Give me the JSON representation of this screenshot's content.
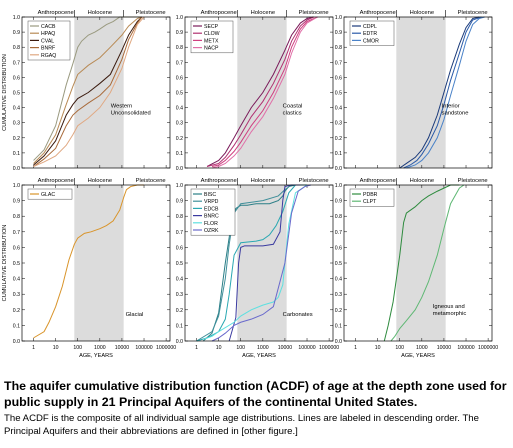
{
  "figure": {
    "period_labels": [
      "Anthropocene",
      "Holocene",
      "Pleistocene"
    ],
    "y_axis_label": "CUMULATIVE DISTRIBUTION",
    "x_axis_label": "AGE, YEARS",
    "y_tick_labels": [
      "0.0",
      "0.1",
      "0.2",
      "0.3",
      "0.4",
      "0.5",
      "0.6",
      "0.7",
      "0.8",
      "0.9",
      "1.0"
    ],
    "x_tick_labels": [
      "1",
      "10",
      "100",
      "1000",
      "10000",
      "100000",
      "1000000"
    ]
  },
  "caption": {
    "title": "The aquifer cumulative distribution function (ACDF) of age at the depth zone used for public supply in 21 Principal Aquifers of the continental United States.",
    "body": "The ACDF is the composite of all individual sample age distributions. Lines are labeled in descending order. The Principal Aquifers and their abbreviations are defined in [other figure.]"
  },
  "chart_data": [
    {
      "type": "line",
      "xscale": "log",
      "xlim": [
        0.3,
        1500000
      ],
      "ylim": [
        0,
        1
      ],
      "title": "",
      "xlabel": "",
      "ylabel": "CUMULATIVE DISTRIBUTION",
      "grid": false,
      "shaded_x_range": [
        70,
        12000
      ],
      "legend": "top-left",
      "annotation": "Western\nUnconsolidated",
      "series": [
        {
          "name": "CACB",
          "color": "#9a9a80",
          "x": [
            1,
            3,
            10,
            30,
            60,
            100,
            150,
            300,
            600,
            1000,
            2000,
            4000,
            8000,
            15000,
            30000,
            80000
          ],
          "y": [
            0.05,
            0.12,
            0.28,
            0.55,
            0.69,
            0.8,
            0.84,
            0.88,
            0.9,
            0.92,
            0.95,
            0.97,
            1,
            1,
            1,
            1
          ]
        },
        {
          "name": "HPAQ",
          "color": "#b88a55",
          "x": [
            1,
            3,
            10,
            30,
            60,
            100,
            300,
            1000,
            3000,
            10000,
            20000,
            50000,
            80000
          ],
          "y": [
            0.03,
            0.1,
            0.22,
            0.42,
            0.54,
            0.62,
            0.68,
            0.73,
            0.8,
            0.88,
            0.94,
            0.99,
            1
          ]
        },
        {
          "name": "CVAL",
          "color": "#3a1a0e",
          "x": [
            1,
            3,
            10,
            30,
            60,
            100,
            300,
            1000,
            3000,
            10000,
            20000,
            50000,
            80000
          ],
          "y": [
            0.02,
            0.08,
            0.18,
            0.35,
            0.42,
            0.46,
            0.5,
            0.56,
            0.62,
            0.78,
            0.88,
            0.97,
            1
          ]
        },
        {
          "name": "BNRF",
          "color": "#a86a3a",
          "x": [
            1,
            3,
            10,
            30,
            60,
            100,
            300,
            1000,
            3000,
            10000,
            20000,
            50000,
            80000
          ],
          "y": [
            0.01,
            0.06,
            0.13,
            0.28,
            0.35,
            0.38,
            0.43,
            0.48,
            0.55,
            0.72,
            0.85,
            0.96,
            1
          ]
        },
        {
          "name": "RGAQ",
          "color": "#e0a882",
          "x": [
            1,
            3,
            10,
            30,
            60,
            100,
            300,
            1000,
            3000,
            10000,
            20000,
            50000,
            100000
          ],
          "y": [
            0.01,
            0.04,
            0.08,
            0.15,
            0.22,
            0.28,
            0.33,
            0.4,
            0.5,
            0.66,
            0.8,
            0.95,
            1
          ]
        }
      ]
    },
    {
      "type": "line",
      "xscale": "log",
      "xlim": [
        0.3,
        1500000
      ],
      "ylim": [
        0,
        1
      ],
      "title": "",
      "xlabel": "",
      "ylabel": "",
      "grid": false,
      "shaded_x_range": [
        70,
        12000
      ],
      "legend": "top-left",
      "annotation": "Coastal\nclastics",
      "series": [
        {
          "name": "SECP",
          "color": "#7a1a5a",
          "x": [
            3,
            10,
            20,
            50,
            100,
            300,
            1000,
            3000,
            10000,
            20000,
            50000,
            100000,
            200000
          ],
          "y": [
            0.01,
            0.05,
            0.1,
            0.2,
            0.28,
            0.4,
            0.5,
            0.62,
            0.78,
            0.88,
            0.96,
            0.99,
            1
          ]
        },
        {
          "name": "CLOW",
          "color": "#b03070",
          "x": [
            3,
            10,
            20,
            50,
            100,
            300,
            1000,
            3000,
            10000,
            20000,
            50000,
            100000,
            200000
          ],
          "y": [
            0.01,
            0.03,
            0.07,
            0.15,
            0.22,
            0.34,
            0.44,
            0.56,
            0.72,
            0.84,
            0.94,
            0.98,
            1
          ]
        },
        {
          "name": "METX",
          "color": "#d04080",
          "x": [
            5,
            10,
            20,
            50,
            100,
            300,
            1000,
            3000,
            10000,
            20000,
            50000,
            100000,
            300000
          ],
          "y": [
            0.01,
            0.02,
            0.05,
            0.11,
            0.17,
            0.28,
            0.38,
            0.5,
            0.66,
            0.8,
            0.92,
            0.97,
            1
          ]
        },
        {
          "name": "NACP",
          "color": "#e070a8",
          "x": [
            5,
            10,
            20,
            50,
            100,
            300,
            1000,
            3000,
            10000,
            20000,
            50000,
            100000,
            300000
          ],
          "y": [
            0,
            0.01,
            0.03,
            0.08,
            0.13,
            0.24,
            0.34,
            0.46,
            0.62,
            0.76,
            0.9,
            0.96,
            1
          ]
        }
      ]
    },
    {
      "type": "line",
      "xscale": "log",
      "xlim": [
        0.3,
        1500000
      ],
      "ylim": [
        0,
        1
      ],
      "title": "",
      "xlabel": "",
      "ylabel": "",
      "grid": false,
      "shaded_x_range": [
        70,
        12000
      ],
      "legend": "top-left",
      "annotation": "Interior\nsandstone",
      "series": [
        {
          "name": "CDPL",
          "color": "#1a3a7a",
          "x": [
            100,
            200,
            500,
            1000,
            2000,
            5000,
            10000,
            20000,
            50000,
            100000,
            200000,
            400000
          ],
          "y": [
            0,
            0.03,
            0.07,
            0.12,
            0.2,
            0.35,
            0.5,
            0.65,
            0.82,
            0.93,
            0.99,
            1
          ]
        },
        {
          "name": "EDTR",
          "color": "#2a5aa8",
          "x": [
            150,
            300,
            600,
            1000,
            2000,
            5000,
            10000,
            20000,
            50000,
            100000,
            200000,
            500000
          ],
          "y": [
            0,
            0.02,
            0.05,
            0.09,
            0.16,
            0.28,
            0.42,
            0.58,
            0.76,
            0.9,
            0.98,
            1
          ]
        },
        {
          "name": "CMOR",
          "color": "#4a82c8",
          "x": [
            200,
            500,
            1000,
            2000,
            5000,
            10000,
            20000,
            50000,
            100000,
            200000,
            400000,
            700000
          ],
          "y": [
            0,
            0.02,
            0.05,
            0.1,
            0.2,
            0.32,
            0.48,
            0.68,
            0.84,
            0.95,
            0.99,
            1
          ]
        }
      ]
    },
    {
      "type": "line",
      "xscale": "log",
      "xlim": [
        0.3,
        1500000
      ],
      "ylim": [
        0,
        1
      ],
      "title": "",
      "xlabel": "AGE, YEARS",
      "ylabel": "CUMULATIVE DISTRIBUTION",
      "grid": false,
      "shaded_x_range": [
        70,
        12000
      ],
      "legend": "top-left",
      "annotation": "Glacial",
      "series": [
        {
          "name": "GLAC",
          "color": "#d9942a",
          "x": [
            1,
            3,
            5,
            10,
            20,
            40,
            70,
            100,
            200,
            400,
            1000,
            2000,
            4000,
            8000,
            12000,
            16000,
            25000,
            50000,
            100000
          ],
          "y": [
            0.02,
            0.06,
            0.12,
            0.22,
            0.35,
            0.52,
            0.62,
            0.66,
            0.69,
            0.7,
            0.72,
            0.74,
            0.77,
            0.84,
            0.92,
            0.97,
            0.99,
            1,
            1
          ]
        }
      ]
    },
    {
      "type": "line",
      "xscale": "log",
      "xlim": [
        0.3,
        1500000
      ],
      "ylim": [
        0,
        1
      ],
      "title": "",
      "xlabel": "AGE, YEARS",
      "ylabel": "",
      "grid": false,
      "shaded_x_range": [
        70,
        12000
      ],
      "legend": "top-left",
      "annotation": "Carbonates",
      "series": [
        {
          "name": "BISC",
          "color": "#2a7e86",
          "x": [
            2,
            5,
            10,
            20,
            40,
            60,
            100,
            200,
            500,
            2000,
            5000,
            8000,
            10000,
            15000,
            30000,
            100000
          ],
          "y": [
            0,
            0.05,
            0.18,
            0.5,
            0.78,
            0.85,
            0.87,
            0.87,
            0.88,
            0.88,
            0.9,
            0.93,
            0.96,
            0.99,
            1,
            1
          ]
        },
        {
          "name": "VRPD",
          "color": "#3f8f9a",
          "x": [
            1,
            5,
            10,
            20,
            30,
            50,
            100,
            1000,
            5000,
            10000,
            20000,
            50000
          ],
          "y": [
            0,
            0.06,
            0.16,
            0.4,
            0.62,
            0.82,
            0.88,
            0.9,
            0.93,
            0.97,
            1,
            1
          ]
        },
        {
          "name": "EDCB",
          "color": "#2aa8b2",
          "x": [
            1,
            3,
            10,
            20,
            30,
            50,
            100,
            500,
            1000,
            2000,
            4000,
            8000,
            15000,
            30000
          ],
          "y": [
            0,
            0.02,
            0.06,
            0.14,
            0.3,
            0.55,
            0.63,
            0.64,
            0.65,
            0.68,
            0.74,
            0.83,
            0.95,
            1
          ]
        },
        {
          "name": "BNRC",
          "color": "#3a3aa0",
          "x": [
            30,
            60,
            80,
            100,
            150,
            200,
            500,
            1000,
            3000,
            6000,
            8000,
            10000,
            20000,
            50000
          ],
          "y": [
            0,
            0.15,
            0.5,
            0.6,
            0.61,
            0.61,
            0.61,
            0.61,
            0.62,
            0.7,
            0.9,
            0.99,
            1,
            1
          ]
        },
        {
          "name": "FLOR",
          "color": "#5ee0e0",
          "x": [
            2,
            5,
            10,
            50,
            100,
            300,
            1000,
            3000,
            5000,
            8000,
            10000,
            15000,
            30000,
            100000
          ],
          "y": [
            0.01,
            0.03,
            0.06,
            0.12,
            0.16,
            0.2,
            0.23,
            0.25,
            0.28,
            0.36,
            0.5,
            0.75,
            0.95,
            1
          ]
        },
        {
          "name": "OZRK",
          "color": "#6a6acc",
          "x": [
            5,
            10,
            20,
            50,
            100,
            300,
            1000,
            3000,
            10000,
            20000,
            40000,
            80000,
            150000
          ],
          "y": [
            0,
            0.02,
            0.05,
            0.1,
            0.12,
            0.14,
            0.17,
            0.22,
            0.5,
            0.82,
            0.96,
            0.99,
            1
          ]
        }
      ]
    },
    {
      "type": "line",
      "xscale": "log",
      "xlim": [
        0.3,
        1500000
      ],
      "ylim": [
        0,
        1
      ],
      "title": "",
      "xlabel": "AGE, YEARS",
      "ylabel": "",
      "grid": false,
      "shaded_x_range": [
        70,
        12000
      ],
      "legend": "top-left",
      "annotation": "Igneous and\nmetamorphic",
      "series": [
        {
          "name": "PDBR",
          "color": "#2e8b3e",
          "x": [
            20,
            30,
            50,
            100,
            150,
            200,
            500,
            1000,
            2000,
            5000,
            10000,
            20000,
            50000
          ],
          "y": [
            0,
            0.1,
            0.25,
            0.55,
            0.76,
            0.82,
            0.86,
            0.9,
            0.93,
            0.96,
            0.98,
            1,
            1
          ]
        },
        {
          "name": "CLPT",
          "color": "#5fb874",
          "x": [
            40,
            60,
            100,
            200,
            500,
            1000,
            2000,
            5000,
            10000,
            20000,
            50000,
            80000
          ],
          "y": [
            0,
            0.03,
            0.08,
            0.13,
            0.2,
            0.28,
            0.38,
            0.55,
            0.72,
            0.88,
            0.98,
            1
          ]
        }
      ]
    }
  ]
}
